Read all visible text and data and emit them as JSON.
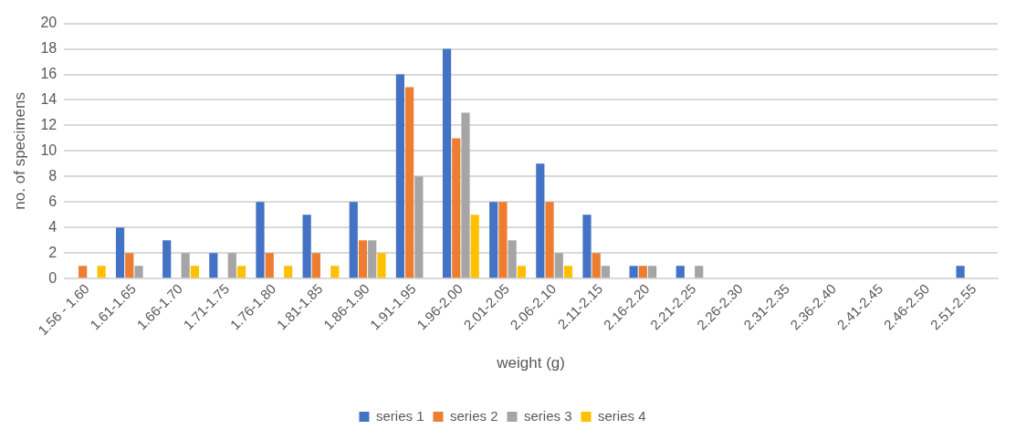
{
  "chart_data": {
    "type": "bar",
    "xlabel": "weight (g)",
    "ylabel": "no. of specimens",
    "categories": [
      "1.56 - 1.60",
      "1.61-1.65",
      "1.66-1.70",
      "1.71-1.75",
      "1.76-1.80",
      "1.81-1.85",
      "1.86-1.90",
      "1.91-1.95",
      "1.96-2.00",
      "2.01-2.05",
      "2.06-2.10",
      "2.11-2.15",
      "2.16-2.20",
      "2.21-2.25",
      "2.26-2.30",
      "2.31-2.35",
      "2.36-2.40",
      "2.41-2.45",
      "2.46-2.50",
      "2.51-2.55"
    ],
    "series": [
      {
        "name": "series 1",
        "color": "#4472c4",
        "values": [
          0,
          4,
          3,
          2,
          6,
          5,
          6,
          16,
          18,
          6,
          9,
          5,
          1,
          1,
          0,
          0,
          0,
          0,
          0,
          1
        ]
      },
      {
        "name": "series 2",
        "color": "#ed7d31",
        "values": [
          1,
          2,
          0,
          0,
          2,
          2,
          3,
          15,
          11,
          6,
          6,
          2,
          1,
          0,
          0,
          0,
          0,
          0,
          0,
          0
        ]
      },
      {
        "name": "series 3",
        "color": "#a5a5a5",
        "values": [
          0,
          1,
          2,
          2,
          0,
          0,
          3,
          8,
          13,
          3,
          2,
          1,
          1,
          1,
          0,
          0,
          0,
          0,
          0,
          0
        ]
      },
      {
        "name": "series 4",
        "color": "#ffc000",
        "values": [
          1,
          0,
          1,
          1,
          1,
          1,
          2,
          0,
          5,
          1,
          1,
          0,
          0,
          0,
          0,
          0,
          0,
          0,
          0,
          0
        ]
      }
    ],
    "ylim": [
      0,
      20
    ],
    "yticks": [
      0,
      2,
      4,
      6,
      8,
      10,
      12,
      14,
      16,
      18,
      20
    ],
    "grid": "y",
    "legend": "bottom"
  }
}
